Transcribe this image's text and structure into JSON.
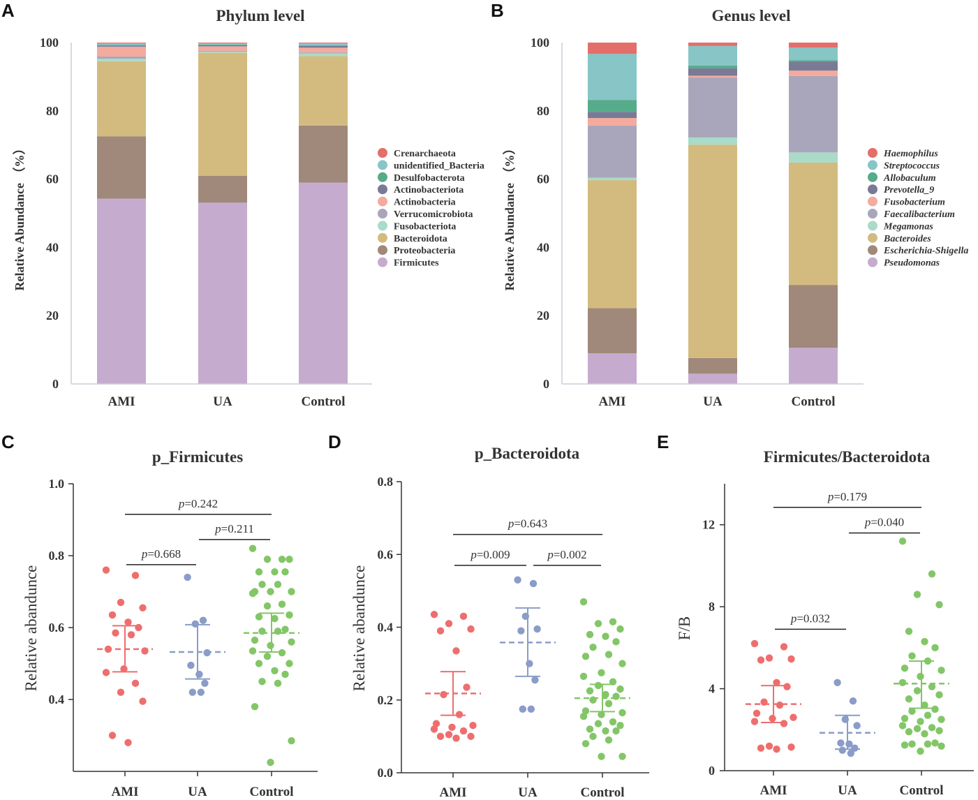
{
  "panels": {
    "A": "A",
    "B": "B",
    "C": "C",
    "D": "D",
    "E": "E"
  },
  "colors": {
    "Firmicutes": "#c5accf",
    "Proteobacteria": "#a0887a",
    "Bacteroidota": "#d3bb7f",
    "Fusobacteriota": "#a9dbc8",
    "Verrucomicrobiota": "#a9a6bb",
    "Actinobacteria": "#f4aa9d",
    "Actinobacteriota": "#797a95",
    "Desulfobacterota": "#56ab8b",
    "unidentified_Bacteria": "#87c5c7",
    "Crenarchaeota": "#e46e6a",
    "AMI": "#ee6e6e",
    "UA": "#8a9cc8",
    "Control": "#83c667"
  },
  "chart_data": [
    {
      "panel": "A",
      "type": "bar",
      "stacked": true,
      "title": "Phylum level",
      "ylabel": "Relative Abundance （%）",
      "ylim": [
        0,
        100
      ],
      "yticks": [
        "0",
        "20",
        "40",
        "60",
        "80",
        "100"
      ],
      "categories": [
        "AMI",
        "UA",
        "Control"
      ],
      "legend": [
        "Crenarchaeota",
        "unidentified_Bacteria",
        "Desulfobacterota",
        "Actinobacteriota",
        "Actinobacteria",
        "Verrucomicrobiota",
        "Fusobacteriota",
        "Bacteroidota",
        "Proteobacteria",
        "Firmicutes"
      ],
      "legend_italic": false,
      "series": [
        {
          "name": "Firmicutes",
          "color": "#c5accf",
          "values": [
            54.3,
            53.1,
            59.0
          ]
        },
        {
          "name": "Proteobacteria",
          "color": "#a0887a",
          "values": [
            18.2,
            7.9,
            16.7
          ]
        },
        {
          "name": "Bacteroidota",
          "color": "#d3bb7f",
          "values": [
            22.0,
            36.0,
            20.3
          ]
        },
        {
          "name": "Fusobacteriota",
          "color": "#a9dbc8",
          "values": [
            0.8,
            0.3,
            0.8
          ]
        },
        {
          "name": "Verrucomicrobiota",
          "color": "#a9a6bb",
          "values": [
            0.6,
            0.3,
            0.3
          ]
        },
        {
          "name": "Actinobacteria",
          "color": "#f4aa9d",
          "values": [
            2.9,
            1.3,
            1.4
          ]
        },
        {
          "name": "Actinobacteriota",
          "color": "#797a95",
          "values": [
            0.3,
            0.3,
            0.5
          ]
        },
        {
          "name": "Desulfobacterota",
          "color": "#56ab8b",
          "values": [
            0.2,
            0.2,
            0.2
          ]
        },
        {
          "name": "unidentified_Bacteria",
          "color": "#87c5c7",
          "values": [
            0.5,
            0.4,
            0.6
          ]
        },
        {
          "name": "Crenarchaeota",
          "color": "#e46e6a",
          "values": [
            0.2,
            0.2,
            0.2
          ]
        }
      ]
    },
    {
      "panel": "B",
      "type": "bar",
      "stacked": true,
      "title": "Genus level",
      "ylabel": "Relative Abundance （%）",
      "ylim": [
        0,
        100
      ],
      "yticks": [
        "0",
        "20",
        "40",
        "60",
        "80",
        "100"
      ],
      "categories": [
        "AMI",
        "UA",
        "Control"
      ],
      "legend": [
        "Haemophilus",
        "Streptococcus",
        "Allobaculum",
        "Prevotella_9",
        "Fusobacterium",
        "Faecalibacterium",
        "Megamonas",
        "Bacteroides",
        "Escherichia-Shigella",
        "Pseudomonas"
      ],
      "legend_italic": true,
      "series": [
        {
          "name": "Pseudomonas",
          "color": "#c5accf",
          "values": [
            9.0,
            3.0,
            10.7
          ]
        },
        {
          "name": "Escherichia-Shigella",
          "color": "#a0887a",
          "values": [
            13.2,
            4.6,
            18.6
          ]
        },
        {
          "name": "Bacteroides",
          "color": "#d3bb7f",
          "values": [
            37.5,
            62.5,
            36.2
          ]
        },
        {
          "name": "Megamonas",
          "color": "#a9dbc8",
          "values": [
            0.7,
            2.1,
            3.0
          ]
        },
        {
          "name": "Faecalibacterium",
          "color": "#a9a6bb",
          "values": [
            15.3,
            17.6,
            22.6
          ]
        },
        {
          "name": "Fusobacterium",
          "color": "#f4aa9d",
          "values": [
            2.2,
            0.5,
            1.6
          ]
        },
        {
          "name": "Prevotella_9",
          "color": "#797a95",
          "values": [
            1.8,
            2.2,
            2.7
          ]
        },
        {
          "name": "Allobaculum",
          "color": "#56ab8b",
          "values": [
            3.5,
            0.8,
            0.4
          ]
        },
        {
          "name": "Streptococcus",
          "color": "#87c5c7",
          "values": [
            13.5,
            5.7,
            3.7
          ]
        },
        {
          "name": "Haemophilus",
          "color": "#e46e6a",
          "values": [
            3.3,
            1.0,
            1.5
          ]
        }
      ]
    },
    {
      "panel": "C",
      "type": "scatter",
      "title": "p_Firmicutes",
      "ylabel": "Relative abandunce",
      "ylim": [
        0.2,
        1.0
      ],
      "yticks": [
        0.4,
        0.6,
        0.8,
        1.0
      ],
      "ytick_labels": [
        "0.4",
        "0.6",
        "0.8",
        "1.0"
      ],
      "categories": [
        "AMI",
        "UA",
        "Control"
      ],
      "groups": [
        {
          "name": "AMI",
          "color": "#ee6e6e",
          "mean": 0.54,
          "err_low": 0.477,
          "err_high": 0.605,
          "points": [
            0.76,
            0.745,
            0.67,
            0.655,
            0.635,
            0.615,
            0.6,
            0.585,
            0.58,
            0.54,
            0.535,
            0.485,
            0.475,
            0.445,
            0.42,
            0.395,
            0.3,
            0.28
          ]
        },
        {
          "name": "UA",
          "color": "#8a9cc8",
          "mean": 0.532,
          "err_low": 0.457,
          "err_high": 0.608,
          "points": [
            0.74,
            0.62,
            0.61,
            0.53,
            0.495,
            0.47,
            0.445,
            0.42,
            0.42
          ]
        },
        {
          "name": "Control",
          "color": "#83c667",
          "mean": 0.585,
          "err_low": 0.532,
          "err_high": 0.64,
          "points": [
            0.82,
            0.79,
            0.79,
            0.79,
            0.755,
            0.755,
            0.755,
            0.72,
            0.72,
            0.7,
            0.7,
            0.7,
            0.695,
            0.665,
            0.66,
            0.635,
            0.63,
            0.625,
            0.595,
            0.59,
            0.59,
            0.565,
            0.56,
            0.55,
            0.535,
            0.53,
            0.52,
            0.5,
            0.5,
            0.48,
            0.47,
            0.45,
            0.445,
            0.38,
            0.285,
            0.225
          ]
        }
      ],
      "comparisons": [
        {
          "label": "=0.668",
          "from": "AMI",
          "to": "UA",
          "y": 0.775
        },
        {
          "label": "=0.211",
          "from": "UA",
          "to": "Control",
          "y": 0.845
        },
        {
          "label": "=0.242",
          "from": "AMI",
          "to": "Control",
          "y": 0.915
        }
      ]
    },
    {
      "panel": "D",
      "type": "scatter",
      "title": "p_Bacteroidota",
      "ylabel": "Relative abandunce",
      "ylim": [
        0.0,
        0.8
      ],
      "yticks": [
        0.0,
        0.2,
        0.4,
        0.6,
        0.8
      ],
      "ytick_labels": [
        "0.0",
        "0.2",
        "0.4",
        "0.6",
        "0.8"
      ],
      "categories": [
        "AMI",
        "UA",
        "Control"
      ],
      "groups": [
        {
          "name": "AMI",
          "color": "#ee6e6e",
          "mean": 0.218,
          "err_low": 0.158,
          "err_high": 0.278,
          "points": [
            0.435,
            0.43,
            0.41,
            0.395,
            0.39,
            0.335,
            0.235,
            0.215,
            0.16,
            0.135,
            0.13,
            0.125,
            0.12,
            0.115,
            0.105,
            0.1,
            0.1,
            0.095
          ]
        },
        {
          "name": "UA",
          "color": "#8a9cc8",
          "mean": 0.358,
          "err_low": 0.265,
          "err_high": 0.453,
          "points": [
            0.53,
            0.52,
            0.43,
            0.395,
            0.39,
            0.3,
            0.255,
            0.175,
            0.175
          ]
        },
        {
          "name": "Control",
          "color": "#83c667",
          "mean": 0.205,
          "err_low": 0.168,
          "err_high": 0.243,
          "points": [
            0.47,
            0.415,
            0.41,
            0.395,
            0.38,
            0.375,
            0.36,
            0.345,
            0.325,
            0.32,
            0.3,
            0.275,
            0.265,
            0.25,
            0.24,
            0.23,
            0.225,
            0.215,
            0.21,
            0.2,
            0.19,
            0.17,
            0.165,
            0.16,
            0.155,
            0.14,
            0.135,
            0.13,
            0.12,
            0.115,
            0.115,
            0.1,
            0.09,
            0.08,
            0.045,
            0.045
          ]
        }
      ],
      "comparisons": [
        {
          "label": "=0.009",
          "from": "AMI",
          "to": "UA",
          "y": 0.57
        },
        {
          "label": "=0.002",
          "from": "UA",
          "to": "Control",
          "y": 0.57
        },
        {
          "label": "=0.643",
          "from": "AMI",
          "to": "Control",
          "y": 0.655
        }
      ]
    },
    {
      "panel": "E",
      "type": "scatter",
      "title": "Firmicutes/Bacteroidota",
      "ylabel": "F/B",
      "ylim": [
        0,
        14
      ],
      "yticks": [
        0,
        4,
        8,
        12
      ],
      "ytick_labels": [
        "0",
        "4",
        "8",
        "12"
      ],
      "categories": [
        "AMI",
        "UA",
        "Control"
      ],
      "groups": [
        {
          "name": "AMI",
          "color": "#ee6e6e",
          "mean": 3.25,
          "err_low": 2.35,
          "err_high": 4.15,
          "points": [
            6.2,
            6.05,
            5.5,
            5.45,
            5.4,
            4.3,
            4.1,
            3.35,
            3.2,
            2.8,
            2.6,
            2.55,
            2.4,
            2.3,
            1.2,
            1.15,
            1.1,
            1.05
          ]
        },
        {
          "name": "UA",
          "color": "#8a9cc8",
          "mean": 1.85,
          "err_low": 1.05,
          "err_high": 2.7,
          "points": [
            4.3,
            3.4,
            2.5,
            2.2,
            1.35,
            1.3,
            1.1,
            1.0,
            0.85
          ]
        },
        {
          "name": "Control",
          "color": "#83c667",
          "mean": 4.25,
          "err_low": 3.05,
          "err_high": 5.35,
          "points": [
            11.2,
            9.6,
            8.6,
            8.1,
            6.8,
            6.3,
            6.0,
            5.6,
            5.35,
            5.0,
            4.9,
            4.6,
            4.3,
            4.1,
            3.9,
            3.7,
            3.5,
            3.2,
            3.0,
            2.9,
            2.7,
            2.55,
            2.5,
            2.4,
            2.2,
            2.1,
            2.05,
            1.95,
            1.9,
            1.8,
            1.35,
            1.3,
            1.3,
            1.25,
            1.2,
            0.95
          ]
        }
      ],
      "comparisons": [
        {
          "label": "=0.032",
          "from": "AMI",
          "to": "UA",
          "y": 6.9
        },
        {
          "label": "=0.040",
          "from": "UA",
          "to": "Control",
          "y": 11.6
        },
        {
          "label": "=0.179",
          "from": "AMI",
          "to": "Control",
          "y": 12.85
        }
      ]
    }
  ]
}
